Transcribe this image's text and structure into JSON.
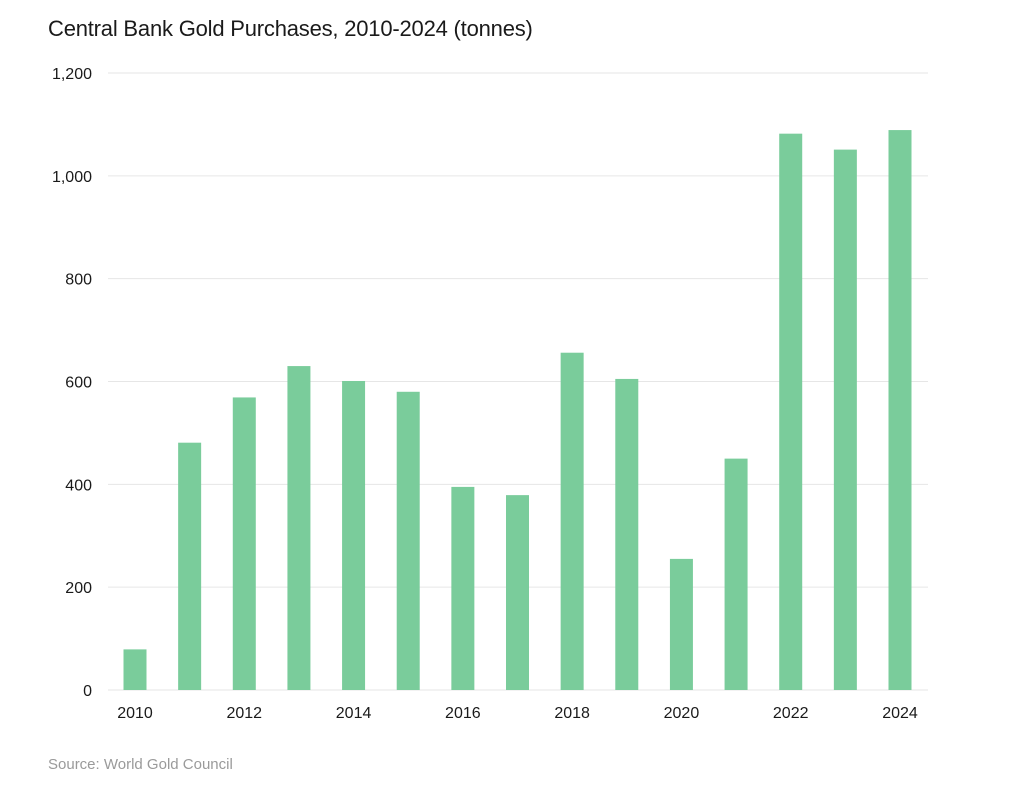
{
  "title": "Central Bank Gold Purchases, 2010-2024 (tonnes)",
  "source": "Source: World Gold Council",
  "colors": {
    "bar": "#7acc9b",
    "grid": "#e6e6e6",
    "text": "#1a1a1a",
    "source": "#9a9a9a"
  },
  "chart_data": {
    "type": "bar",
    "title": "Central Bank Gold Purchases, 2010-2024 (tonnes)",
    "xlabel": "",
    "ylabel": "",
    "categories": [
      "2010",
      "2011",
      "2012",
      "2013",
      "2014",
      "2015",
      "2016",
      "2017",
      "2018",
      "2019",
      "2020",
      "2021",
      "2022",
      "2023",
      "2024"
    ],
    "values": [
      79,
      481,
      569,
      630,
      601,
      580,
      395,
      379,
      656,
      605,
      255,
      450,
      1082,
      1051,
      1089
    ],
    "ylim": [
      0,
      1200
    ],
    "yticks": [
      0,
      200,
      400,
      600,
      800,
      1000,
      1200
    ],
    "ytick_labels": [
      "0",
      "200",
      "400",
      "600",
      "800",
      "1,000",
      "1,200"
    ],
    "xtick_labels": [
      "2010",
      "2012",
      "2014",
      "2016",
      "2018",
      "2020",
      "2022",
      "2024"
    ],
    "grid": true,
    "legend": "none"
  }
}
